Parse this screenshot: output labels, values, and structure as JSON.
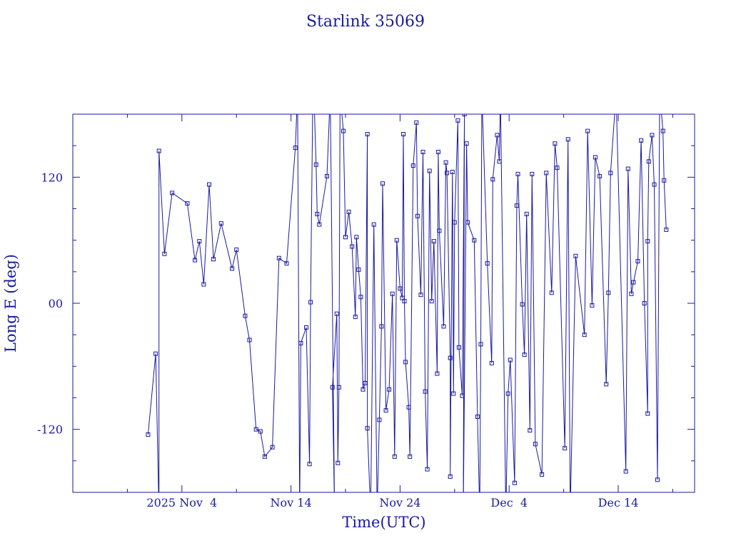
{
  "chart_data": {
    "type": "line",
    "title": "Starlink 35069",
    "xlabel": "Time(UTC)",
    "ylabel": "Long E (deg)",
    "x_unit": "days since 2025-10-25 00:00 UTC",
    "xlim": [
      0,
      57
    ],
    "ylim": [
      -180,
      180
    ],
    "x_ticks": [
      {
        "value": 10,
        "label": "2025 Nov  4"
      },
      {
        "value": 20,
        "label": "Nov 14"
      },
      {
        "value": 30,
        "label": "Nov 24"
      },
      {
        "value": 40,
        "label": "Dec  4"
      },
      {
        "value": 50,
        "label": "Dec 14"
      }
    ],
    "y_ticks": [
      {
        "value": 120,
        "label": "120"
      },
      {
        "value": 0,
        "label": "00"
      },
      {
        "value": -120,
        "label": "-120"
      }
    ],
    "series": [
      {
        "name": "",
        "points": [
          [
            6.9,
            -125
          ],
          [
            7.6,
            -48
          ],
          [
            7.9,
            -200
          ],
          [
            7.9,
            145
          ],
          [
            8.4,
            47
          ],
          [
            9.1,
            105
          ],
          [
            10.5,
            95
          ],
          [
            11.2,
            41
          ],
          [
            11.6,
            59
          ],
          [
            12.0,
            18
          ],
          [
            12.5,
            113
          ],
          [
            12.9,
            42
          ],
          [
            13.6,
            76
          ],
          [
            14.6,
            33
          ],
          [
            15.0,
            51
          ],
          [
            15.8,
            -12
          ],
          [
            16.2,
            -35
          ],
          [
            16.8,
            -120
          ],
          [
            17.2,
            -122
          ],
          [
            17.6,
            -146
          ],
          [
            18.3,
            -137
          ],
          [
            18.9,
            43
          ],
          [
            19.6,
            38
          ],
          [
            20.4,
            148
          ],
          [
            20.6,
            200
          ],
          [
            20.8,
            -200
          ],
          [
            20.9,
            -38
          ],
          [
            21.4,
            -23
          ],
          [
            21.7,
            -153
          ],
          [
            21.8,
            1
          ],
          [
            22.0,
            200
          ],
          [
            22.1,
            200
          ],
          [
            22.3,
            132
          ],
          [
            22.4,
            85
          ],
          [
            22.6,
            75
          ],
          [
            23.3,
            121
          ],
          [
            23.6,
            200
          ],
          [
            24.0,
            -200
          ],
          [
            23.8,
            -80
          ],
          [
            24.2,
            -10
          ],
          [
            24.3,
            -152
          ],
          [
            24.4,
            -80
          ],
          [
            24.5,
            200
          ],
          [
            24.8,
            164
          ],
          [
            25.0,
            63
          ],
          [
            25.3,
            87
          ],
          [
            25.6,
            54
          ],
          [
            25.9,
            -13
          ],
          [
            26.0,
            63
          ],
          [
            26.2,
            32
          ],
          [
            26.4,
            6
          ],
          [
            26.6,
            -82
          ],
          [
            26.8,
            -76
          ],
          [
            27.0,
            161
          ],
          [
            27.0,
            -119
          ],
          [
            27.3,
            -200
          ],
          [
            27.6,
            75
          ],
          [
            27.9,
            -200
          ],
          [
            28.1,
            -111
          ],
          [
            28.3,
            -22
          ],
          [
            28.4,
            114
          ],
          [
            28.7,
            -102
          ],
          [
            29.0,
            -82
          ],
          [
            29.3,
            9
          ],
          [
            29.5,
            -146
          ],
          [
            29.7,
            60
          ],
          [
            30.0,
            14
          ],
          [
            30.2,
            5
          ],
          [
            30.3,
            161
          ],
          [
            30.4,
            2
          ],
          [
            30.5,
            -56
          ],
          [
            30.8,
            -99
          ],
          [
            30.9,
            -146
          ],
          [
            31.2,
            131
          ],
          [
            31.5,
            172
          ],
          [
            31.6,
            83
          ],
          [
            31.9,
            8
          ],
          [
            32.1,
            144
          ],
          [
            32.3,
            -84
          ],
          [
            32.5,
            -158
          ],
          [
            32.7,
            126
          ],
          [
            32.9,
            2
          ],
          [
            33.1,
            59
          ],
          [
            33.4,
            -67
          ],
          [
            33.5,
            144
          ],
          [
            33.6,
            69
          ],
          [
            34.0,
            -22
          ],
          [
            34.2,
            134
          ],
          [
            34.3,
            124
          ],
          [
            34.6,
            -52
          ],
          [
            34.6,
            -165
          ],
          [
            34.8,
            125
          ],
          [
            34.9,
            -86
          ],
          [
            35.0,
            77
          ],
          [
            35.3,
            174
          ],
          [
            35.4,
            -42
          ],
          [
            35.7,
            -88
          ],
          [
            35.9,
            180
          ],
          [
            35.8,
            -200
          ],
          [
            36.1,
            152
          ],
          [
            36.2,
            77
          ],
          [
            36.8,
            60
          ],
          [
            37.1,
            -108
          ],
          [
            37.3,
            -200
          ],
          [
            37.4,
            -39
          ],
          [
            37.5,
            200
          ],
          [
            38.0,
            38
          ],
          [
            38.4,
            -57
          ],
          [
            38.5,
            118
          ],
          [
            38.9,
            160
          ],
          [
            39.1,
            135
          ],
          [
            39.2,
            200
          ],
          [
            39.7,
            -200
          ],
          [
            39.9,
            -86
          ],
          [
            40.1,
            -54
          ],
          [
            40.5,
            -171
          ],
          [
            40.7,
            93
          ],
          [
            40.8,
            123
          ],
          [
            41.2,
            -1
          ],
          [
            41.4,
            -49
          ],
          [
            41.6,
            85
          ],
          [
            41.9,
            -121
          ],
          [
            42.1,
            123
          ],
          [
            42.4,
            -134
          ],
          [
            43.0,
            -163
          ],
          [
            43.4,
            124
          ],
          [
            43.9,
            10
          ],
          [
            44.2,
            152
          ],
          [
            44.4,
            129
          ],
          [
            45.1,
            -138
          ],
          [
            45.4,
            156
          ],
          [
            45.6,
            -200
          ],
          [
            46.1,
            45
          ],
          [
            46.9,
            -30
          ],
          [
            47.2,
            164
          ],
          [
            47.6,
            -2
          ],
          [
            47.9,
            139
          ],
          [
            48.3,
            121
          ],
          [
            48.9,
            -77
          ],
          [
            49.1,
            10
          ],
          [
            49.3,
            124
          ],
          [
            49.8,
            200
          ],
          [
            50.7,
            -160
          ],
          [
            50.9,
            128
          ],
          [
            51.2,
            9
          ],
          [
            51.4,
            20
          ],
          [
            51.8,
            40
          ],
          [
            52.1,
            155
          ],
          [
            52.4,
            0
          ],
          [
            52.7,
            -105
          ],
          [
            52.7,
            59
          ],
          [
            52.8,
            135
          ],
          [
            53.1,
            160
          ],
          [
            53.3,
            113
          ],
          [
            53.6,
            -168
          ],
          [
            53.8,
            200
          ],
          [
            54.1,
            164
          ],
          [
            54.2,
            117
          ],
          [
            54.4,
            70
          ]
        ]
      }
    ]
  }
}
